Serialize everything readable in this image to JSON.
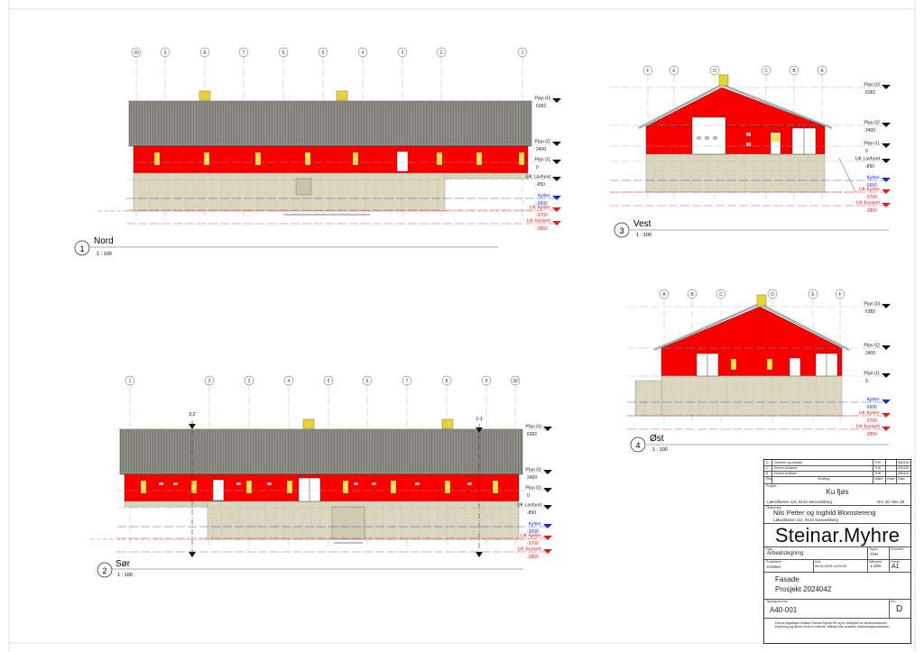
{
  "views": [
    {
      "number": "1",
      "name": "Nord",
      "scale": "1 : 100",
      "grid_labels": [
        "30",
        "9",
        "8",
        "7",
        "6",
        "5",
        "4",
        "3",
        "2",
        "1"
      ],
      "levels": [
        {
          "name": "Plan 03",
          "value": "6382",
          "color": "#000000"
        },
        {
          "name": "Plan 02",
          "value": "2400",
          "color": "#000000"
        },
        {
          "name": "Plan 01",
          "value": "0",
          "color": "#000000"
        },
        {
          "name": "UK Lavfund",
          "value": "-850",
          "color": "#000000"
        },
        {
          "name": "Kjeller",
          "value": "-3600",
          "color": "#1a2bd6"
        },
        {
          "name": "UK Kjeller",
          "value": "-3700",
          "color": "#e02020"
        },
        {
          "name": "UK Bankett",
          "value": "-3850",
          "color": "#e02020"
        }
      ]
    },
    {
      "number": "2",
      "name": "Sør",
      "scale": "1 : 100",
      "grid_labels": [
        "1",
        "2",
        "3",
        "4",
        "5",
        "6",
        "7",
        "8",
        "9",
        "30"
      ],
      "section_marks": [
        "2-2",
        "1-1"
      ],
      "levels": [
        {
          "name": "Plan 03",
          "value": "6382",
          "color": "#000000"
        },
        {
          "name": "Plan 02",
          "value": "2400",
          "color": "#000000"
        },
        {
          "name": "Plan 01",
          "value": "0",
          "color": "#000000"
        },
        {
          "name": "UK Lavfund",
          "value": "-850",
          "color": "#000000"
        },
        {
          "name": "Kjeller",
          "value": "-3600",
          "color": "#1a2bd6"
        },
        {
          "name": "UK Kjeller",
          "value": "-3700",
          "color": "#e02020"
        },
        {
          "name": "UK Bankett",
          "value": "-3850",
          "color": "#e02020"
        }
      ]
    },
    {
      "number": "3",
      "name": "Vest",
      "scale": "1 : 100",
      "grid_labels": [
        "F",
        "E",
        "D",
        "C",
        "B",
        "A"
      ],
      "levels": [
        {
          "name": "Plan 03",
          "value": "6382",
          "color": "#000000"
        },
        {
          "name": "Plan 02",
          "value": "2400",
          "color": "#000000"
        },
        {
          "name": "Plan 01",
          "value": "0",
          "color": "#000000"
        },
        {
          "name": "UK Lavfund",
          "value": "-850",
          "color": "#000000"
        },
        {
          "name": "Kjeller",
          "value": "-3600",
          "color": "#1a2bd6"
        },
        {
          "name": "UK Kjeller",
          "value": "-3700",
          "color": "#e02020"
        },
        {
          "name": "UK Bankett",
          "value": "-3850",
          "color": "#e02020"
        }
      ]
    },
    {
      "number": "4",
      "name": "Øst",
      "scale": "1 : 100",
      "grid_labels": [
        "A",
        "B",
        "C",
        "D",
        "E",
        "F"
      ],
      "levels": [
        {
          "name": "Plan 03",
          "value": "6382",
          "color": "#000000"
        },
        {
          "name": "Plan 02",
          "value": "2400",
          "color": "#000000"
        },
        {
          "name": "Plan 01",
          "value": "0",
          "color": "#000000"
        },
        {
          "name": "Kjeller",
          "value": "-3600",
          "color": "#1a2bd6"
        },
        {
          "name": "UK Kjeller",
          "value": "-3700",
          "color": "#e02020"
        },
        {
          "name": "UK Bankett",
          "value": "-3850",
          "color": "#e02020"
        }
      ]
    }
  ],
  "colors": {
    "wall_red": "#ff0000",
    "roof_grey": "#8a8a80",
    "foundation": "#dcd8bf",
    "vent_yellow": "#e8d23a",
    "window_yellow": "#ffe14a"
  },
  "title_block": {
    "revisions": [
      {
        "rev": "D",
        "change": "Sentrller og puttsøk",
        "by": "THH",
        "date": "080325"
      },
      {
        "rev": "C",
        "change": "Endret vindauer",
        "by": "THH",
        "date": "220425"
      },
      {
        "rev": "B",
        "change": "Endret vindauer",
        "by": "THH",
        "date": "080424"
      }
    ],
    "revision_headers": [
      "Rev",
      "Endring",
      "Utført",
      "Kontr.",
      "Dato"
    ],
    "project_label": "Prosjekt",
    "project": "Ku fjøs",
    "project_address": "Løkvollveien 114, 9144 Samuelsberg",
    "gnr_bnr": "Gnr 30 / Bnr 28",
    "client_label": "Tiltakshaver",
    "client": "Nils Petter og Inghild Blomstereng",
    "client_address": "Løkvollveien 114, 9144 Samuelsberg",
    "company": "Steinar.Myhre",
    "phase_label": "Fase",
    "phase": "Arbeidstegning",
    "drawn_label": "Tegnet",
    "drawn_by": "THH",
    "checked_label": "Kontrollert",
    "designer_label": "Prosjekterer",
    "designer": "Kristian",
    "date_label": "Dato",
    "date": "08.05.2025 14:53:29",
    "scale_label": "Målestokk",
    "scale": "1:100",
    "format_label": "Format",
    "format": "A1",
    "drawing_title_1": "Fasade",
    "drawing_title_2": "Prosjekt 2024042",
    "drawing_number_label": "Tegningsnummer",
    "drawing_number": "A40-001",
    "rev_label": "Rev",
    "revision": "D",
    "disclaimer": "Denne tegningen tilhører Steinar Myhre AS og er beskyttet av åndsverksloven. Kopiering og annen bruk er forbudt. Målsatt kan avvikles anvisnningsprosessen."
  }
}
